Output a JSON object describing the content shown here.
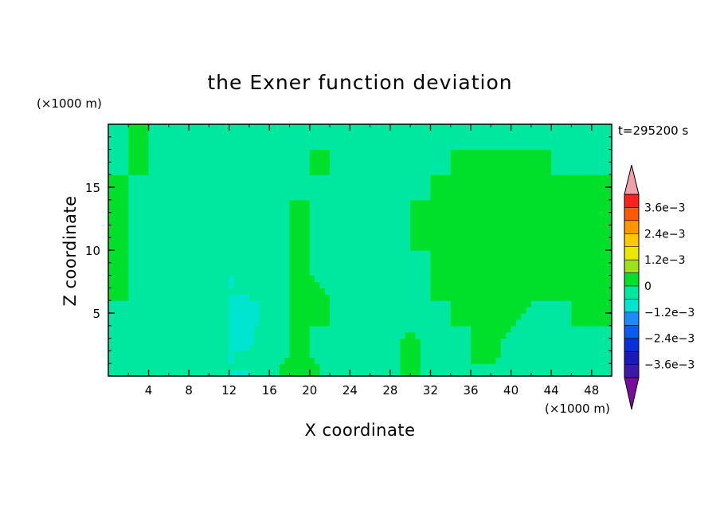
{
  "chart_data": {
    "type": "heatmap",
    "title": "the Exner function deviation",
    "xlabel": "X coordinate",
    "ylabel": "Z coordinate",
    "x_unit": "(×1000 m)",
    "y_unit": "(×1000 m)",
    "time_label": "t=295200 s",
    "xlim": [
      0,
      50
    ],
    "ylim": [
      0,
      20
    ],
    "x_ticks": [
      4,
      8,
      12,
      16,
      20,
      24,
      28,
      32,
      36,
      40,
      44,
      48
    ],
    "y_ticks": [
      5,
      10,
      15
    ],
    "colorbar": {
      "levels": [
        -0.0042,
        -0.0036,
        -0.003,
        -0.0024,
        -0.0018,
        -0.0012,
        -0.0006,
        0,
        0.0006,
        0.0012,
        0.0018,
        0.0024,
        0.003,
        0.0036,
        0.0042
      ],
      "colors": [
        "#7b0d9c",
        "#3b1aa8",
        "#1a1ab8",
        "#0a2ed8",
        "#0a5cf0",
        "#1a8cf5",
        "#00e5d0",
        "#00e8a0",
        "#00e02a",
        "#9be21a",
        "#e8e800",
        "#ffc800",
        "#ff9600",
        "#ff5a00",
        "#ff2020",
        "#f0a0a8"
      ],
      "labels": [
        "3.6e−3",
        "2.4e−3",
        "1.2e−3",
        "0",
        "−1.2e−3",
        "−2.4e−3",
        "−3.6e−3"
      ]
    },
    "x": [
      0,
      2,
      4,
      6,
      8,
      10,
      12,
      14,
      16,
      18,
      20,
      22,
      24,
      26,
      28,
      30,
      32,
      34,
      36,
      38,
      40,
      42,
      44,
      46,
      48,
      50
    ],
    "y": [
      0,
      2,
      4,
      6,
      8,
      10,
      12,
      14,
      16,
      18,
      20
    ],
    "z": [
      [
        0,
        -0.0003,
        -0.0003,
        0,
        -0.0003,
        -0.0003,
        -0.0006,
        -0.0006,
        -0.0003,
        0.0003,
        0.0003,
        -0.0003,
        -0.0003,
        -0.0003,
        -0.0003,
        0.0003,
        -0.0003,
        -0.0003,
        0,
        -0.0003,
        -0.0003,
        -0.0003,
        -0.0003,
        0,
        -0.0003,
        -0.0003
      ],
      [
        0,
        -0.0003,
        -0.0003,
        -0.0003,
        -0.0003,
        -0.0003,
        -0.0006,
        -0.0006,
        -0.0003,
        0,
        0,
        -0.0003,
        -0.0003,
        -0.0003,
        -0.0003,
        0.0003,
        -0.0003,
        -0.0003,
        0,
        0.0003,
        -0.0003,
        -0.0003,
        -0.0003,
        0,
        -0.0003,
        0
      ],
      [
        0,
        -0.0003,
        -0.0003,
        -0.0003,
        -0.0003,
        -0.0003,
        -0.0006,
        -0.0008,
        -0.0003,
        0,
        0,
        0,
        -0.0003,
        -0.0003,
        -0.0003,
        0,
        -0.0003,
        0,
        0,
        0.0003,
        0,
        -0.0003,
        -0.0003,
        0,
        0,
        0
      ],
      [
        0,
        0,
        -0.0003,
        -0.0003,
        -0.0003,
        -0.0003,
        -0.0006,
        -0.0006,
        -0.0006,
        0,
        0.0003,
        0,
        -0.0003,
        -0.0003,
        -0.0003,
        -0.0003,
        0,
        0,
        0.0003,
        0,
        0.0003,
        0,
        0,
        0,
        0,
        0
      ],
      [
        0,
        0,
        -0.0003,
        -0.0003,
        -0.0003,
        -0.0003,
        -0.0006,
        -0.0006,
        -0.0003,
        0,
        0,
        -0.0003,
        -0.0003,
        -0.0003,
        -0.0003,
        -0.0003,
        0,
        0,
        0,
        0,
        0,
        0,
        0,
        0,
        0,
        0
      ],
      [
        0,
        0,
        -0.0003,
        -0.0003,
        -0.0003,
        -0.0003,
        -0.0006,
        -0.0003,
        -0.0003,
        0,
        0,
        -0.0003,
        -0.0003,
        -0.0003,
        -0.0003,
        0,
        0,
        0,
        0,
        0,
        0,
        0,
        0,
        0,
        0,
        0
      ],
      [
        0,
        0,
        -0.0003,
        -0.0003,
        -0.0003,
        -0.0003,
        -0.0003,
        -0.0003,
        -0.0003,
        0,
        0,
        -0.0003,
        -0.0003,
        -0.0003,
        -0.0003,
        0,
        0,
        0,
        0,
        0,
        0,
        0,
        0,
        0,
        0,
        0
      ],
      [
        0,
        0,
        -0.0003,
        -0.0003,
        -0.0003,
        -0.0003,
        -0.0003,
        -0.0003,
        -0.0003,
        0,
        0,
        -0.0003,
        -0.0003,
        -0.0003,
        -0.0003,
        0,
        0,
        0,
        0,
        0,
        0,
        0,
        0,
        0,
        0,
        0
      ],
      [
        0,
        0,
        0,
        -0.0003,
        -0.0003,
        -0.0003,
        -0.0003,
        -0.0003,
        -0.0003,
        -0.0003,
        0,
        0,
        -0.0003,
        -0.0003,
        -0.0003,
        -0.0003,
        0,
        0,
        0,
        0,
        0,
        0,
        0,
        0,
        0,
        0
      ],
      [
        -0.0003,
        0,
        0,
        -0.0003,
        -0.0003,
        -0.0003,
        -0.0003,
        -0.0003,
        -0.0003,
        -0.0003,
        0,
        0,
        -0.0003,
        -0.0003,
        -0.0003,
        -0.0003,
        -0.0003,
        0,
        0,
        0,
        0,
        0,
        0,
        -0.0003,
        -0.0003,
        0
      ],
      [
        -0.0003,
        0,
        0,
        0,
        0,
        0,
        0,
        0,
        0,
        0,
        -0.0003,
        -0.0003,
        -0.0003,
        -0.0003,
        -0.0003,
        -0.0003,
        -0.0003,
        -0.0003,
        -0.0003,
        -0.0003,
        -0.0003,
        -0.0003,
        -0.0003,
        -0.0003,
        -0.0003,
        -0.0003
      ]
    ]
  }
}
